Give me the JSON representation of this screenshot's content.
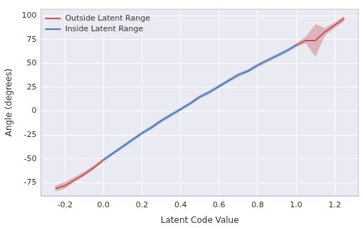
{
  "chart_data": {
    "type": "line",
    "x_label": "Latent Code Value",
    "y_label": "Angle (degrees)",
    "x": [
      -0.25,
      -0.2,
      -0.15,
      -0.1,
      -0.05,
      0,
      0.05,
      0.1,
      0.15,
      0.2,
      0.25,
      0.3,
      0.35,
      0.4,
      0.45,
      0.5,
      0.55,
      0.6,
      0.65,
      0.7,
      0.75,
      0.8,
      0.85,
      0.9,
      0.95,
      1.0,
      1.05,
      1.1,
      1.15,
      1.2,
      1.25
    ],
    "series": [
      {
        "name": "Outside Latent Range",
        "color": "#c44e52",
        "values": [
          -81,
          -78,
          -72,
          -66,
          -59,
          -51,
          null,
          null,
          null,
          null,
          null,
          null,
          null,
          null,
          null,
          null,
          null,
          null,
          null,
          null,
          null,
          null,
          null,
          null,
          null,
          69,
          74,
          74,
          83,
          90,
          97
        ],
        "lower": [
          -84,
          -81,
          -74,
          -68,
          -61,
          -53,
          null,
          null,
          null,
          null,
          null,
          null,
          null,
          null,
          null,
          null,
          null,
          null,
          null,
          null,
          null,
          null,
          null,
          null,
          null,
          67,
          71,
          57,
          79,
          87,
          94
        ],
        "upper": [
          -78,
          -74,
          -69,
          -63,
          -57,
          -49,
          null,
          null,
          null,
          null,
          null,
          null,
          null,
          null,
          null,
          null,
          null,
          null,
          null,
          null,
          null,
          null,
          null,
          null,
          null,
          71,
          78,
          91,
          87,
          93,
          100
        ]
      },
      {
        "name": "Inside Latent Range",
        "color": "#4c72b0",
        "values": [
          null,
          null,
          null,
          null,
          null,
          -51,
          -44,
          -37,
          -30,
          -23,
          -17,
          -10,
          -4,
          2,
          8,
          15,
          20,
          26,
          32,
          38,
          42,
          48,
          53,
          58,
          63,
          69,
          null,
          null,
          null,
          null,
          null
        ],
        "lower": [
          null,
          null,
          null,
          null,
          null,
          -53,
          -46,
          -39,
          -32,
          -25,
          -19,
          -12,
          -6,
          0,
          6,
          13,
          18,
          24,
          30,
          36,
          40,
          46,
          51,
          56,
          61,
          67,
          null,
          null,
          null,
          null,
          null
        ],
        "upper": [
          null,
          null,
          null,
          null,
          null,
          -49,
          -42,
          -35,
          -28,
          -21,
          -15,
          -8,
          -2,
          4,
          10,
          17,
          22,
          28,
          34,
          40,
          44,
          50,
          55,
          60,
          65,
          71,
          null,
          null,
          null,
          null,
          null
        ]
      }
    ],
    "xlim": [
      -0.325,
      1.325
    ],
    "xticks": [
      {
        "value": -0.2,
        "label": "-0.2"
      },
      {
        "value": 0,
        "label": "0.0"
      },
      {
        "value": 0.2,
        "label": "0.2"
      },
      {
        "value": 0.4,
        "label": "0.4"
      },
      {
        "value": 0.6,
        "label": "0.6"
      },
      {
        "value": 0.8,
        "label": "0.8"
      },
      {
        "value": 1.0,
        "label": "1.0"
      },
      {
        "value": 1.2,
        "label": "1.2"
      }
    ],
    "ylim": [
      -89,
      107
    ],
    "yticks": [
      -75,
      -50,
      -25,
      0,
      25,
      50,
      75,
      100
    ],
    "grid": true,
    "legend": "upper left"
  }
}
